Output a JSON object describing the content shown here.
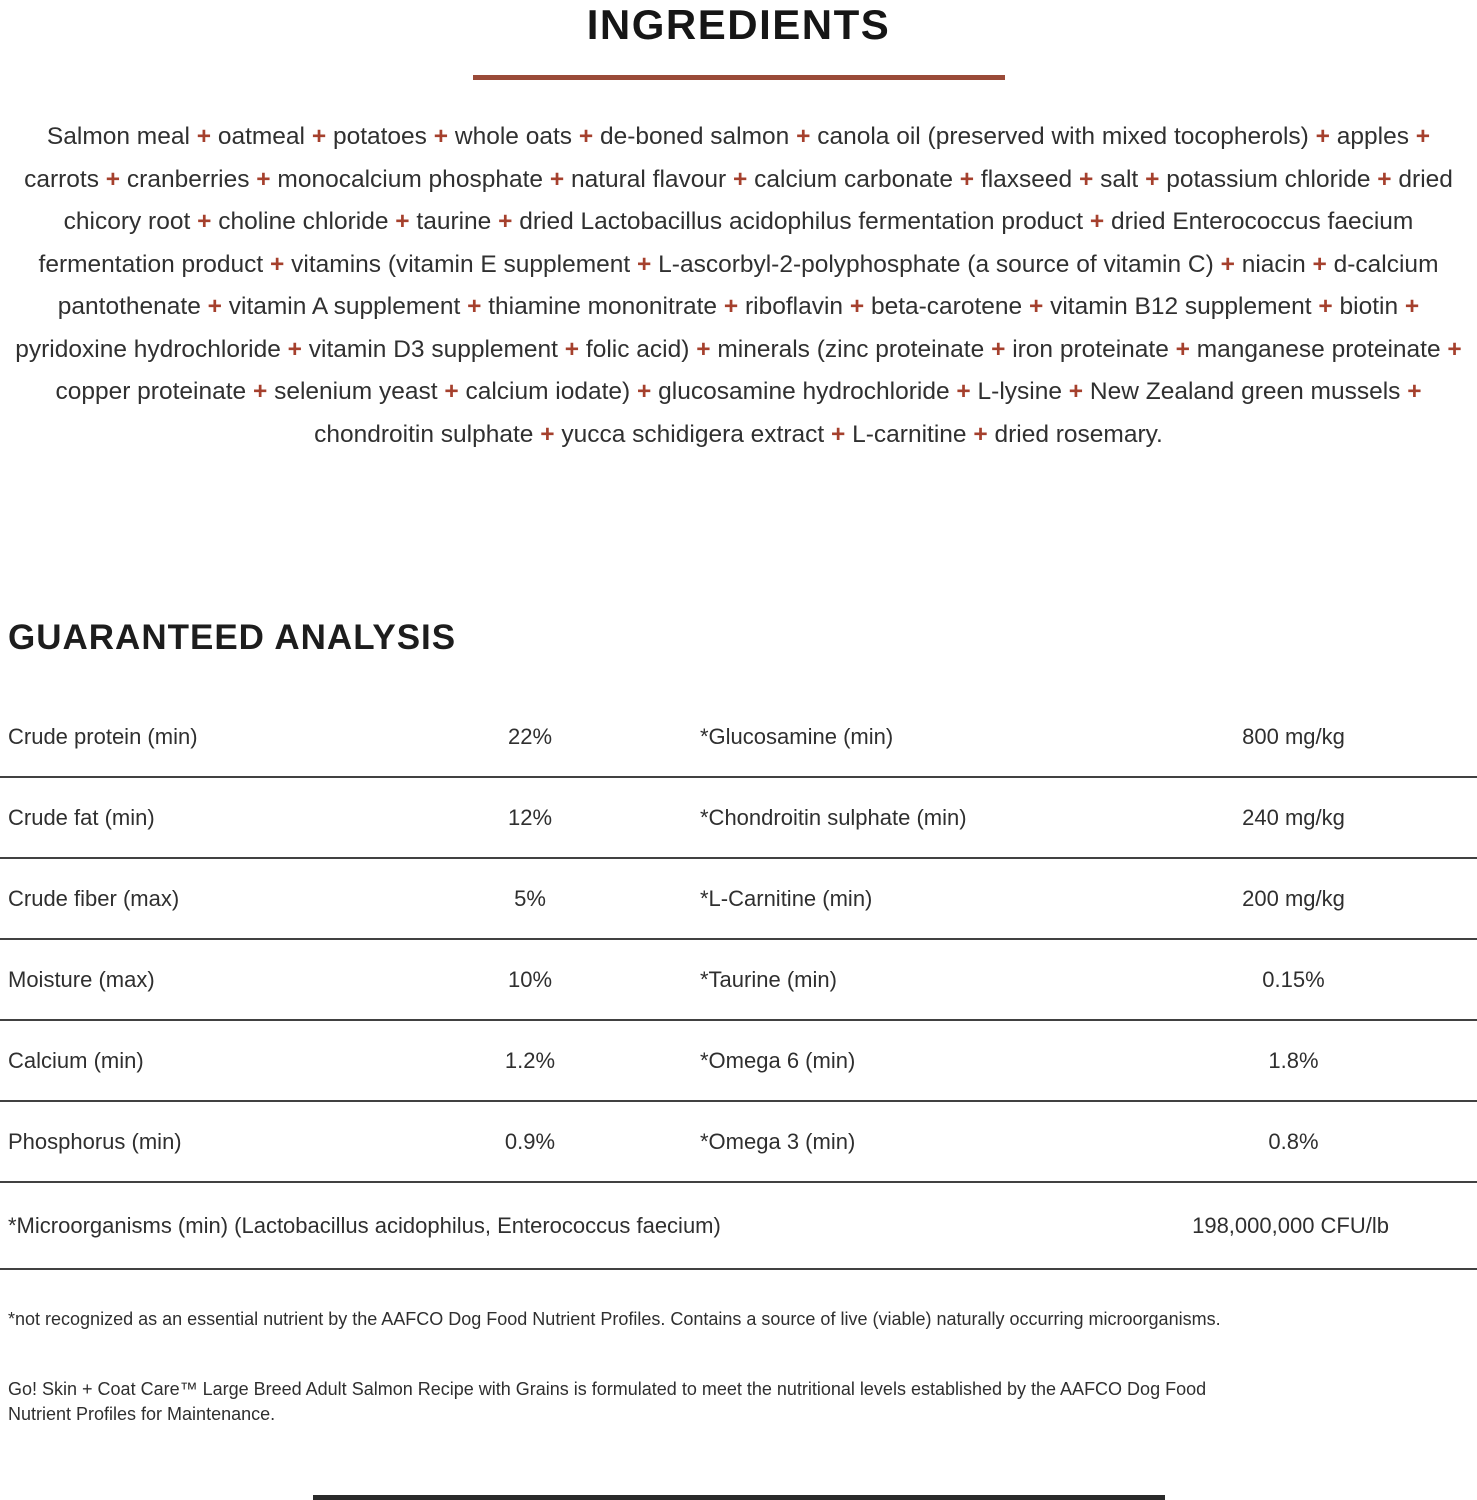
{
  "colors": {
    "accent_rule": "#9a4a38",
    "plus": "#a5402d"
  },
  "page": {
    "title": "INGREDIENTS"
  },
  "ingredients": {
    "separator": "+",
    "items": [
      "Salmon meal",
      "oatmeal",
      "potatoes",
      "whole oats",
      "de-boned salmon",
      "canola oil (preserved with mixed tocopherols)",
      "apples",
      "carrots",
      "cranberries",
      "monocalcium phosphate",
      "natural flavour",
      "calcium carbonate",
      "flaxseed",
      "salt",
      "potassium chloride",
      "dried chicory root",
      "choline chloride",
      "taurine",
      "dried Lactobacillus acidophilus fermentation product",
      "dried Enterococcus faecium fermentation product",
      "vitamins (vitamin E supplement",
      "L-ascorbyl-2-polyphosphate (a source of vitamin C)",
      "niacin",
      "d-calcium pantothenate",
      "vitamin A supplement",
      "thiamine mononitrate",
      "riboflavin",
      "beta-carotene",
      "vitamin B12 supplement",
      "biotin",
      "pyridoxine hydrochloride",
      "vitamin D3 supplement",
      "folic acid)",
      "minerals (zinc proteinate",
      "iron proteinate",
      "manganese proteinate",
      "copper proteinate",
      "selenium yeast",
      "calcium iodate)",
      "glucosamine hydrochloride",
      "L-lysine",
      "New Zealand green mussels",
      "chondroitin sulphate",
      "yucca schidigera extract",
      "L-carnitine",
      "dried rosemary."
    ]
  },
  "analysis": {
    "heading": "GUARANTEED ANALYSIS",
    "rows": [
      {
        "left_label": "Crude protein (min)",
        "left_value": "22%",
        "right_label": "*Glucosamine (min)",
        "right_value": "800 mg/kg"
      },
      {
        "left_label": "Crude fat (min)",
        "left_value": "12%",
        "right_label": "*Chondroitin sulphate (min)",
        "right_value": "240 mg/kg"
      },
      {
        "left_label": "Crude fiber (max)",
        "left_value": "5%",
        "right_label": "*L-Carnitine (min)",
        "right_value": "200 mg/kg"
      },
      {
        "left_label": "Moisture (max)",
        "left_value": "10%",
        "right_label": "*Taurine (min)",
        "right_value": "0.15%"
      },
      {
        "left_label": "Calcium (min)",
        "left_value": "1.2%",
        "right_label": "*Omega 6 (min)",
        "right_value": "1.8%"
      },
      {
        "left_label": "Phosphorus (min)",
        "left_value": "0.9%",
        "right_label": "*Omega 3 (min)",
        "right_value": "0.8%"
      }
    ],
    "full_row": {
      "label": "*Microorganisms (min) (Lactobacillus acidophilus, Enterococcus faecium)",
      "value": "198,000,000 CFU/lb"
    }
  },
  "footnotes": {
    "aafco_note": "*not recognized as an essential nutrient by the AAFCO Dog Food Nutrient Profiles. Contains a source of live (viable) naturally occurring microorganisms.",
    "formulation_note": "Go! Skin + Coat Care™ Large Breed Adult Salmon Recipe with Grains is formulated to meet the nutritional levels established by the AAFCO Dog Food\nNutrient Profiles for Maintenance."
  }
}
